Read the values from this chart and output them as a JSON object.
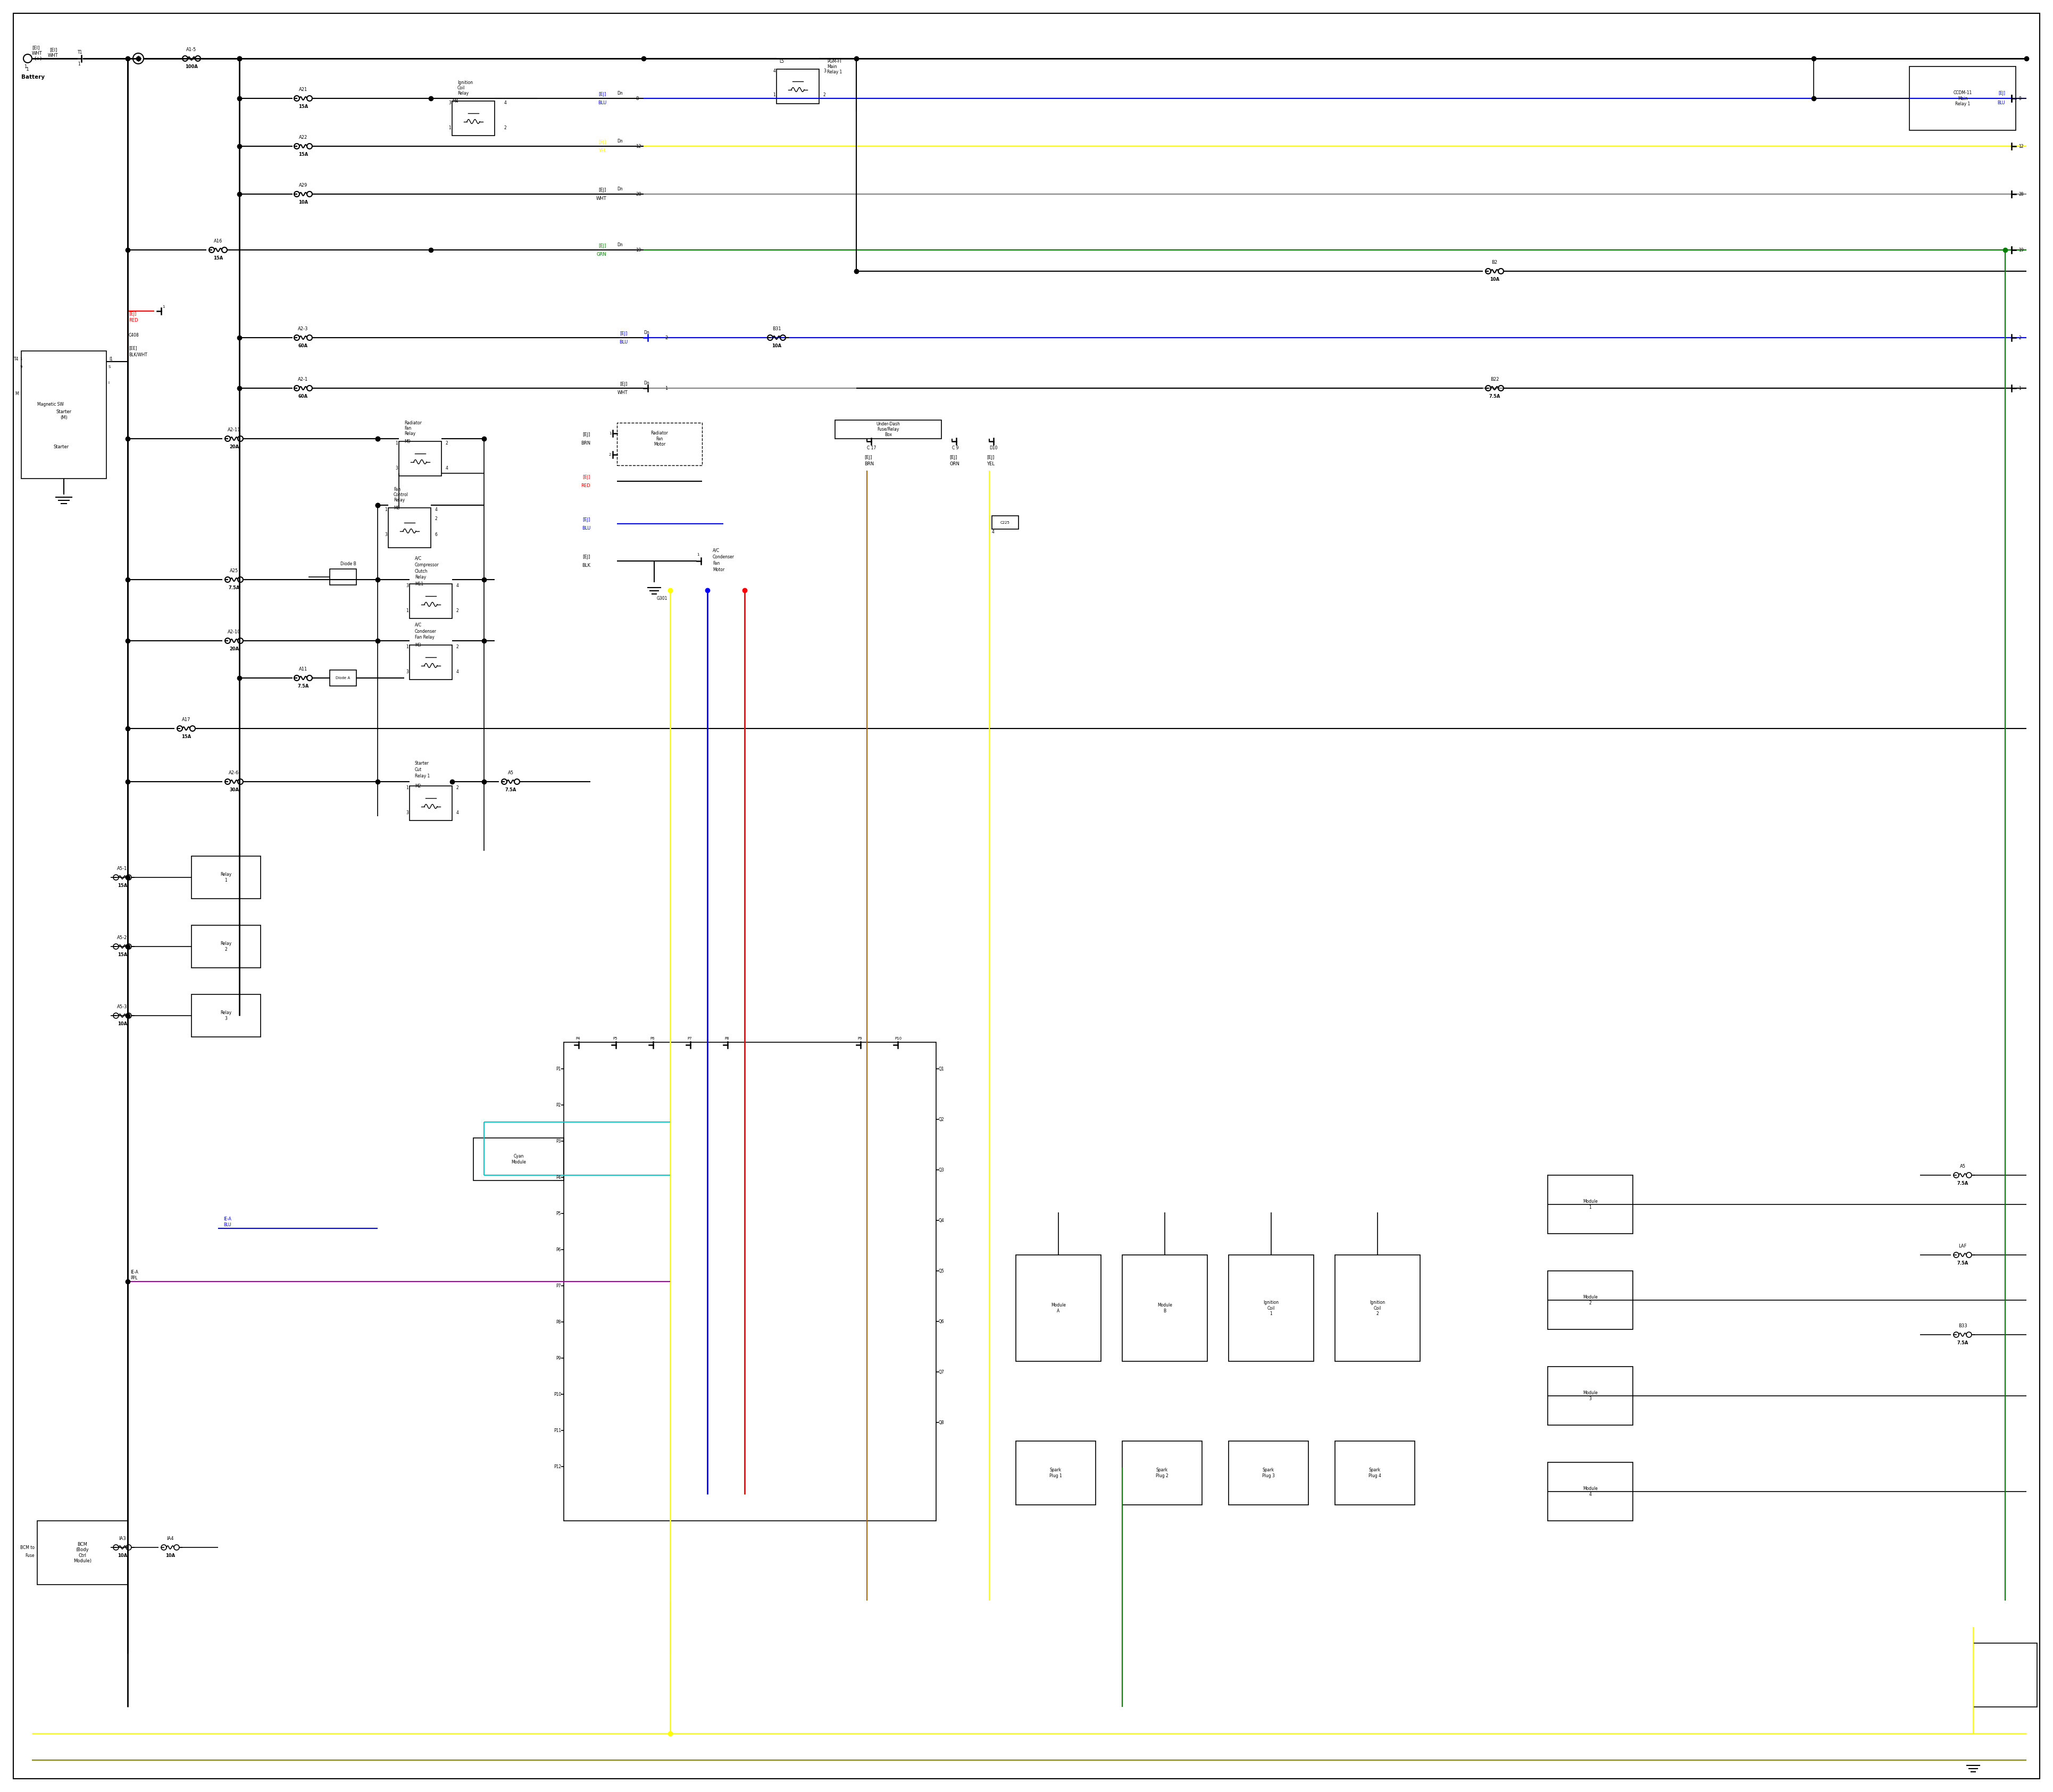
{
  "bg": "#ffffff",
  "bk": "#000000",
  "rd": "#ff0000",
  "bl": "#0000ff",
  "ye": "#ffff00",
  "gr": "#008000",
  "cy": "#00cccc",
  "gy": "#888888",
  "pu": "#aa00aa",
  "ol": "#808000",
  "br": "#aa6600",
  "fig_w": 38.4,
  "fig_h": 33.5
}
